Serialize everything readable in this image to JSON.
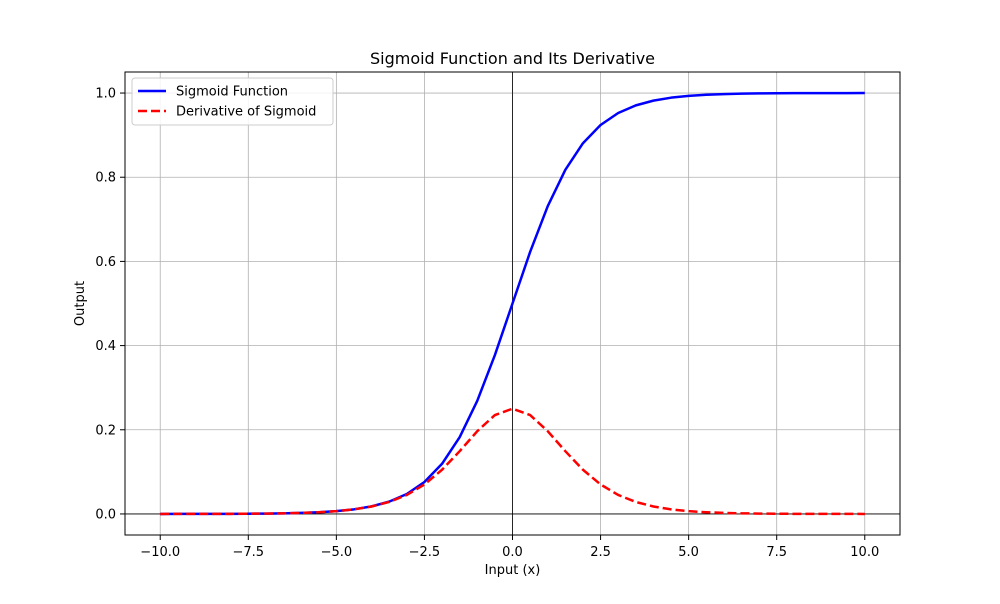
{
  "chart_data": {
    "type": "line",
    "title": "Sigmoid Function and Its Derivative",
    "xlabel": "Input (x)",
    "ylabel": "Output",
    "xlim": [
      -11,
      11
    ],
    "ylim": [
      -0.05,
      1.05
    ],
    "xticks": [
      -10.0,
      -7.5,
      -5.0,
      -2.5,
      0.0,
      2.5,
      5.0,
      7.5,
      10.0
    ],
    "xtick_labels": [
      "−10.0",
      "−7.5",
      "−5.0",
      "−2.5",
      "0.0",
      "2.5",
      "5.0",
      "7.5",
      "10.0"
    ],
    "yticks": [
      0.0,
      0.2,
      0.4,
      0.6,
      0.8,
      1.0
    ],
    "ytick_labels": [
      "0.0",
      "0.2",
      "0.4",
      "0.6",
      "0.8",
      "1.0"
    ],
    "grid": true,
    "reference_lines": {
      "x": 0,
      "y": 0,
      "color": "#000000"
    },
    "legend": {
      "location": "upper-left"
    },
    "x": [
      -10,
      -9.5,
      -9,
      -8.5,
      -8,
      -7.5,
      -7,
      -6.5,
      -6,
      -5.5,
      -5,
      -4.5,
      -4,
      -3.5,
      -3,
      -2.5,
      -2,
      -1.5,
      -1,
      -0.5,
      0,
      0.5,
      1,
      1.5,
      2,
      2.5,
      3,
      3.5,
      4,
      4.5,
      5,
      5.5,
      6,
      6.5,
      7,
      7.5,
      8,
      8.5,
      9,
      9.5,
      10
    ],
    "series": [
      {
        "name": "Sigmoid Function",
        "color": "#0000ff",
        "style": "solid",
        "values": [
          0.0,
          0.0001,
          0.0001,
          0.0002,
          0.0003,
          0.0006,
          0.0009,
          0.0015,
          0.0025,
          0.0041,
          0.0067,
          0.011,
          0.018,
          0.0293,
          0.0474,
          0.0759,
          0.1192,
          0.1824,
          0.2689,
          0.3775,
          0.5,
          0.6225,
          0.7311,
          0.8176,
          0.8808,
          0.9241,
          0.9526,
          0.9707,
          0.982,
          0.989,
          0.9933,
          0.9959,
          0.9975,
          0.9985,
          0.9991,
          0.9994,
          0.9997,
          0.9998,
          0.9999,
          0.9999,
          1.0
        ]
      },
      {
        "name": "Derivative of Sigmoid",
        "color": "#ff0000",
        "style": "dashed",
        "values": [
          0.0,
          0.0001,
          0.0001,
          0.0002,
          0.0003,
          0.0006,
          0.0009,
          0.0015,
          0.0025,
          0.0041,
          0.0066,
          0.0109,
          0.0177,
          0.0285,
          0.0452,
          0.0701,
          0.105,
          0.1491,
          0.1966,
          0.235,
          0.25,
          0.235,
          0.1966,
          0.1491,
          0.105,
          0.0701,
          0.0452,
          0.0285,
          0.0177,
          0.0109,
          0.0066,
          0.0041,
          0.0025,
          0.0015,
          0.0009,
          0.0006,
          0.0003,
          0.0002,
          0.0001,
          0.0001,
          0.0
        ]
      }
    ]
  }
}
